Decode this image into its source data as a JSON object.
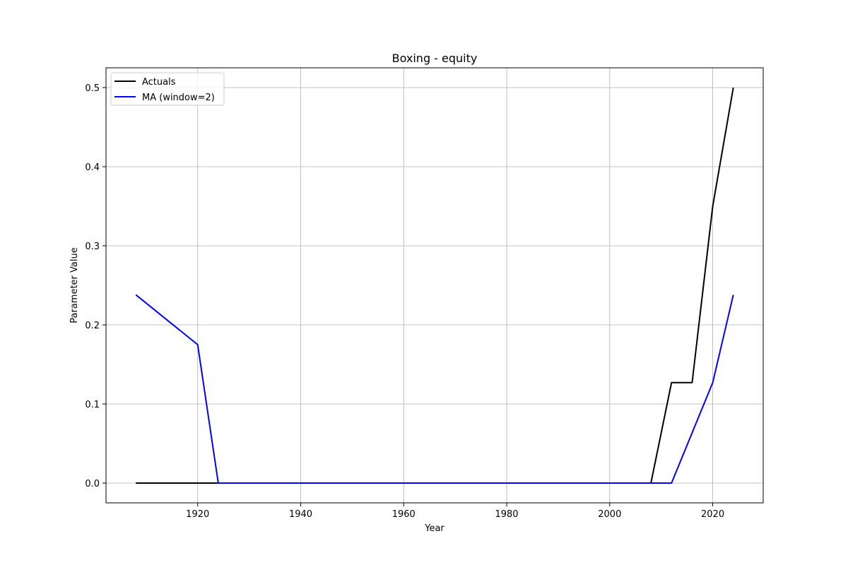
{
  "chart_data": {
    "type": "line",
    "title": "Boxing - equity",
    "xlabel": "Year",
    "ylabel": "Parameter Value",
    "xlim": [
      1902.2,
      2029.8
    ],
    "ylim": [
      -0.025,
      0.525
    ],
    "xticks": [
      1920,
      1940,
      1960,
      1980,
      2000,
      2020
    ],
    "yticks": [
      0.0,
      0.1,
      0.2,
      0.3,
      0.4,
      0.5
    ],
    "ytick_labels": [
      "0.0",
      "0.1",
      "0.2",
      "0.3",
      "0.4",
      "0.5"
    ],
    "grid": true,
    "legend_position": "upper-left",
    "series": [
      {
        "name": "Actuals",
        "color": "#000000",
        "x": [
          1908,
          1912,
          1920,
          1924,
          1928,
          1932,
          1936,
          1948,
          1952,
          1956,
          1960,
          1964,
          1968,
          1972,
          1976,
          1980,
          1984,
          1988,
          1992,
          1996,
          2000,
          2004,
          2008,
          2012,
          2016,
          2020,
          2024
        ],
        "y": [
          0.0,
          0.0,
          0.0,
          0.0,
          0.0,
          0.0,
          0.0,
          0.0,
          0.0,
          0.0,
          0.0,
          0.0,
          0.0,
          0.0,
          0.0,
          0.0,
          0.0,
          0.0,
          0.0,
          0.0,
          0.0,
          0.0,
          0.0,
          0.127,
          0.127,
          0.35,
          0.5
        ]
      },
      {
        "name": "MA (window=2)",
        "color": "#0000ff",
        "x": [
          1908,
          1920,
          1924,
          1928,
          1932,
          1936,
          1948,
          1952,
          1956,
          1960,
          1964,
          1968,
          1972,
          1976,
          1980,
          1984,
          1988,
          1992,
          1996,
          2000,
          2004,
          2008,
          2012,
          2020,
          2024
        ],
        "y": [
          0.238,
          0.175,
          0.0,
          0.0,
          0.0,
          0.0,
          0.0,
          0.0,
          0.0,
          0.0,
          0.0,
          0.0,
          0.0,
          0.0,
          0.0,
          0.0,
          0.0,
          0.0,
          0.0,
          0.0,
          0.0,
          0.0,
          0.0,
          0.127,
          0.238
        ]
      }
    ]
  }
}
